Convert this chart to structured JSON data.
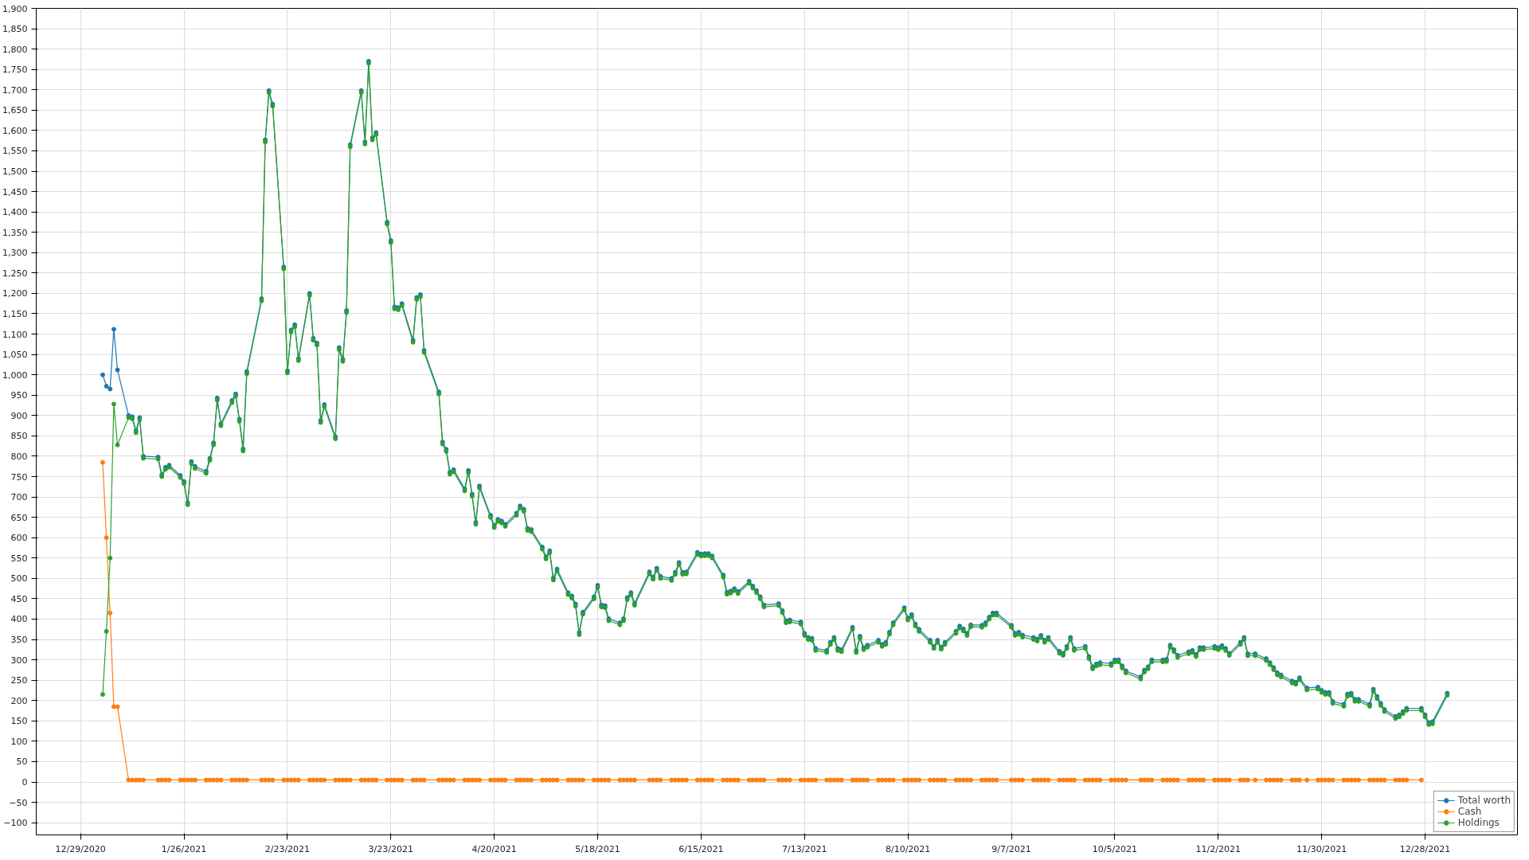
{
  "chart_data": {
    "type": "line",
    "marker": "circle",
    "line_style": "solid",
    "grid": true,
    "legend": "bottom right",
    "xlim": [
      "2020-12-17",
      "2022-01-22"
    ],
    "ylim": [
      -130,
      1900
    ],
    "xticks": [
      {
        "value": "2020-12-29",
        "label": "12/29/2020"
      },
      {
        "value": "2021-01-26",
        "label": "1/26/2021"
      },
      {
        "value": "2021-02-23",
        "label": "2/23/2021"
      },
      {
        "value": "2021-03-23",
        "label": "3/23/2021"
      },
      {
        "value": "2021-04-20",
        "label": "4/20/2021"
      },
      {
        "value": "2021-05-18",
        "label": "5/18/2021"
      },
      {
        "value": "2021-06-15",
        "label": "6/15/2021"
      },
      {
        "value": "2021-07-13",
        "label": "7/13/2021"
      },
      {
        "value": "2021-08-10",
        "label": "8/10/2021"
      },
      {
        "value": "2021-09-07",
        "label": "9/7/2021"
      },
      {
        "value": "2021-10-05",
        "label": "10/5/2021"
      },
      {
        "value": "2021-11-02",
        "label": "11/2/2021"
      },
      {
        "value": "2021-11-30",
        "label": "11/30/2021"
      },
      {
        "value": "2021-12-28",
        "label": "12/28/2021"
      }
    ],
    "yticks": [
      -100,
      -50,
      0,
      50,
      100,
      150,
      200,
      250,
      300,
      350,
      400,
      450,
      500,
      550,
      600,
      650,
      700,
      750,
      800,
      850,
      900,
      950,
      {
        "value": 1000,
        "label": "1,000"
      },
      {
        "value": 1050,
        "label": "1,050"
      },
      {
        "value": 1100,
        "label": "1,100"
      },
      {
        "value": 1150,
        "label": "1,150"
      },
      {
        "value": 1200,
        "label": "1,200"
      },
      {
        "value": 1250,
        "label": "1,250"
      },
      {
        "value": 1300,
        "label": "1,300"
      },
      {
        "value": 1350,
        "label": "1,350"
      },
      {
        "value": 1400,
        "label": "1,400"
      },
      {
        "value": 1450,
        "label": "1,450"
      },
      {
        "value": 1500,
        "label": "1,500"
      },
      {
        "value": 1550,
        "label": "1,550"
      },
      {
        "value": 1600,
        "label": "1,600"
      },
      {
        "value": 1650,
        "label": "1,650"
      },
      {
        "value": 1700,
        "label": "1,700"
      },
      {
        "value": 1750,
        "label": "1,750"
      },
      {
        "value": 1800,
        "label": "1,800"
      },
      {
        "value": 1850,
        "label": "1,850"
      },
      {
        "value": 1900,
        "label": "1,900"
      }
    ],
    "x": [
      "2021-01-04",
      "2021-01-05",
      "2021-01-06",
      "2021-01-07",
      "2021-01-08",
      "2021-01-11",
      "2021-01-12",
      "2021-01-13",
      "2021-01-14",
      "2021-01-15",
      "2021-01-19",
      "2021-01-20",
      "2021-01-21",
      "2021-01-22",
      "2021-01-25",
      "2021-01-26",
      "2021-01-27",
      "2021-01-28",
      "2021-01-29",
      "2021-02-01",
      "2021-02-02",
      "2021-02-03",
      "2021-02-04",
      "2021-02-05",
      "2021-02-08",
      "2021-02-09",
      "2021-02-10",
      "2021-02-11",
      "2021-02-12",
      "2021-02-16",
      "2021-02-17",
      "2021-02-18",
      "2021-02-19",
      "2021-02-22",
      "2021-02-23",
      "2021-02-24",
      "2021-02-25",
      "2021-02-26",
      "2021-03-01",
      "2021-03-02",
      "2021-03-03",
      "2021-03-04",
      "2021-03-05",
      "2021-03-08",
      "2021-03-09",
      "2021-03-10",
      "2021-03-11",
      "2021-03-12",
      "2021-03-15",
      "2021-03-16",
      "2021-03-17",
      "2021-03-18",
      "2021-03-19",
      "2021-03-22",
      "2021-03-23",
      "2021-03-24",
      "2021-03-25",
      "2021-03-26",
      "2021-03-29",
      "2021-03-30",
      "2021-03-31",
      "2021-04-01",
      "2021-04-05",
      "2021-04-06",
      "2021-04-07",
      "2021-04-08",
      "2021-04-09",
      "2021-04-12",
      "2021-04-13",
      "2021-04-14",
      "2021-04-15",
      "2021-04-16",
      "2021-04-19",
      "2021-04-20",
      "2021-04-21",
      "2021-04-22",
      "2021-04-23",
      "2021-04-26",
      "2021-04-27",
      "2021-04-28",
      "2021-04-29",
      "2021-04-30",
      "2021-05-03",
      "2021-05-04",
      "2021-05-05",
      "2021-05-06",
      "2021-05-07",
      "2021-05-10",
      "2021-05-11",
      "2021-05-12",
      "2021-05-13",
      "2021-05-14",
      "2021-05-17",
      "2021-05-18",
      "2021-05-19",
      "2021-05-20",
      "2021-05-21",
      "2021-05-24",
      "2021-05-25",
      "2021-05-26",
      "2021-05-27",
      "2021-05-28",
      "2021-06-01",
      "2021-06-02",
      "2021-06-03",
      "2021-06-04",
      "2021-06-07",
      "2021-06-08",
      "2021-06-09",
      "2021-06-10",
      "2021-06-11",
      "2021-06-14",
      "2021-06-15",
      "2021-06-16",
      "2021-06-17",
      "2021-06-18",
      "2021-06-21",
      "2021-06-22",
      "2021-06-23",
      "2021-06-24",
      "2021-06-25",
      "2021-06-28",
      "2021-06-29",
      "2021-06-30",
      "2021-07-01",
      "2021-07-02",
      "2021-07-06",
      "2021-07-07",
      "2021-07-08",
      "2021-07-09",
      "2021-07-12",
      "2021-07-13",
      "2021-07-14",
      "2021-07-15",
      "2021-07-16",
      "2021-07-19",
      "2021-07-20",
      "2021-07-21",
      "2021-07-22",
      "2021-07-23",
      "2021-07-26",
      "2021-07-27",
      "2021-07-28",
      "2021-07-29",
      "2021-07-30",
      "2021-08-02",
      "2021-08-03",
      "2021-08-04",
      "2021-08-05",
      "2021-08-06",
      "2021-08-09",
      "2021-08-10",
      "2021-08-11",
      "2021-08-12",
      "2021-08-13",
      "2021-08-16",
      "2021-08-17",
      "2021-08-18",
      "2021-08-19",
      "2021-08-20",
      "2021-08-23",
      "2021-08-24",
      "2021-08-25",
      "2021-08-26",
      "2021-08-27",
      "2021-08-30",
      "2021-08-31",
      "2021-09-01",
      "2021-09-02",
      "2021-09-03",
      "2021-09-07",
      "2021-09-08",
      "2021-09-09",
      "2021-09-10",
      "2021-09-13",
      "2021-09-14",
      "2021-09-15",
      "2021-09-16",
      "2021-09-17",
      "2021-09-20",
      "2021-09-21",
      "2021-09-22",
      "2021-09-23",
      "2021-09-24",
      "2021-09-27",
      "2021-09-28",
      "2021-09-29",
      "2021-09-30",
      "2021-10-01",
      "2021-10-04",
      "2021-10-05",
      "2021-10-06",
      "2021-10-07",
      "2021-10-08",
      "2021-10-12",
      "2021-10-13",
      "2021-10-14",
      "2021-10-15",
      "2021-10-18",
      "2021-10-19",
      "2021-10-20",
      "2021-10-21",
      "2021-10-22",
      "2021-10-25",
      "2021-10-26",
      "2021-10-27",
      "2021-10-28",
      "2021-10-29",
      "2021-11-01",
      "2021-11-02",
      "2021-11-03",
      "2021-11-04",
      "2021-11-05",
      "2021-11-08",
      "2021-11-09",
      "2021-11-10",
      "2021-11-12",
      "2021-11-15",
      "2021-11-16",
      "2021-11-17",
      "2021-11-18",
      "2021-11-19",
      "2021-11-22",
      "2021-11-23",
      "2021-11-24",
      "2021-11-26",
      "2021-11-29",
      "2021-11-30",
      "2021-12-01",
      "2021-12-02",
      "2021-12-03",
      "2021-12-06",
      "2021-12-07",
      "2021-12-08",
      "2021-12-09",
      "2021-12-10",
      "2021-12-13",
      "2021-12-14",
      "2021-12-15",
      "2021-12-16",
      "2021-12-17",
      "2021-12-20",
      "2021-12-21",
      "2021-12-22",
      "2021-12-23",
      "2021-12-27",
      "2021-12-28",
      "2021-12-29",
      "2021-12-30",
      "2022-01-03"
    ],
    "series": [
      {
        "name": "Total worth",
        "color": "#1f77b4",
        "values": [
          1000,
          972,
          965,
          1112,
          1012,
          900,
          897,
          863,
          895,
          800,
          798,
          755,
          773,
          778,
          753,
          738,
          686,
          787,
          775,
          763,
          795,
          833,
          943,
          880,
          937,
          953,
          891,
          818,
          1008,
          1187,
          1577,
          1698,
          1665,
          1265,
          1010,
          1110,
          1123,
          1040,
          1200,
          1090,
          1078,
          888,
          927,
          848,
          1067,
          1038,
          1158,
          1565,
          1698,
          1572,
          1770,
          1582,
          1595,
          1375,
          1330,
          1167,
          1165,
          1175,
          1085,
          1190,
          1197,
          1060,
          958,
          835,
          817,
          761,
          767,
          720,
          765,
          707,
          638,
          727,
          655,
          630,
          645,
          641,
          633,
          660,
          678,
          670,
          623,
          620,
          577,
          553,
          568,
          501,
          523,
          465,
          457,
          437,
          367,
          417,
          455,
          483,
          435,
          433,
          401,
          391,
          401,
          453,
          465,
          439,
          516,
          503,
          525,
          505,
          500,
          515,
          539,
          515,
          516,
          564,
          560,
          561,
          561,
          555,
          508,
          466,
          469,
          475,
          468,
          493,
          481,
          470,
          455,
          435,
          438,
          421,
          396,
          398,
          393,
          365,
          355,
          353,
          328,
          323,
          343,
          355,
          328,
          325,
          380,
          323,
          358,
          330,
          336,
          348,
          338,
          343,
          368,
          391,
          428,
          403,
          411,
          388,
          375,
          348,
          333,
          348,
          331,
          343,
          370,
          383,
          376,
          365,
          386,
          385,
          391,
          405,
          415,
          415,
          385,
          365,
          368,
          361,
          355,
          351,
          360,
          348,
          355,
          321,
          316,
          333,
          355,
          328,
          333,
          308,
          283,
          290,
          293,
          291,
          300,
          300,
          285,
          273,
          258,
          275,
          283,
          300,
          300,
          301,
          336,
          325,
          311,
          320,
          323,
          313,
          330,
          330,
          333,
          330,
          335,
          328,
          316,
          343,
          355,
          315,
          315,
          303,
          293,
          281,
          268,
          263,
          248,
          245,
          256,
          231,
          233,
          225,
          220,
          220,
          198,
          191,
          216,
          218,
          203,
          203,
          191,
          228,
          210,
          193,
          178,
          161,
          165,
          173,
          181,
          181,
          165,
          146,
          148,
          218
        ]
      },
      {
        "name": "Cash",
        "color": "#ff7f0e",
        "values": [
          785,
          600,
          415,
          185,
          185,
          5,
          5,
          5,
          5,
          5,
          5,
          5,
          5,
          5,
          5,
          5,
          5,
          5,
          5,
          5,
          5,
          5,
          5,
          5,
          5,
          5,
          5,
          5,
          5,
          5,
          5,
          5,
          5,
          5,
          5,
          5,
          5,
          5,
          5,
          5,
          5,
          5,
          5,
          5,
          5,
          5,
          5,
          5,
          5,
          5,
          5,
          5,
          5,
          5,
          5,
          5,
          5,
          5,
          5,
          5,
          5,
          5,
          5,
          5,
          5,
          5,
          5,
          5,
          5,
          5,
          5,
          5,
          5,
          5,
          5,
          5,
          5,
          5,
          5,
          5,
          5,
          5,
          5,
          5,
          5,
          5,
          5,
          5,
          5,
          5,
          5,
          5,
          5,
          5,
          5,
          5,
          5,
          5,
          5,
          5,
          5,
          5,
          5,
          5,
          5,
          5,
          5,
          5,
          5,
          5,
          5,
          5,
          5,
          5,
          5,
          5,
          5,
          5,
          5,
          5,
          5,
          5,
          5,
          5,
          5,
          5,
          5,
          5,
          5,
          5,
          5,
          5,
          5,
          5,
          5,
          5,
          5,
          5,
          5,
          5,
          5,
          5,
          5,
          5,
          5,
          5,
          5,
          5,
          5,
          5,
          5,
          5,
          5,
          5,
          5,
          5,
          5,
          5,
          5,
          5,
          5,
          5,
          5,
          5,
          5,
          5,
          5,
          5,
          5,
          5,
          5,
          5,
          5,
          5,
          5,
          5,
          5,
          5,
          5,
          5,
          5,
          5,
          5,
          5,
          5,
          5,
          5,
          5,
          5,
          5,
          5,
          5,
          5,
          5,
          5,
          5,
          5,
          5,
          5,
          5,
          5,
          5,
          5,
          5,
          5,
          5,
          5,
          5,
          5,
          5,
          5,
          5,
          5,
          5,
          5,
          5,
          5,
          5,
          5,
          5,
          5,
          5,
          5,
          5,
          5,
          5,
          5,
          5,
          5,
          5,
          5,
          5,
          5,
          5,
          5,
          5,
          5,
          5,
          5,
          5,
          5,
          5,
          5,
          5,
          5,
          5,
          null,
          null,
          null,
          null
        ]
      },
      {
        "name": "Holdings",
        "color": "#2ca02c",
        "values": [
          215,
          370,
          550,
          928,
          828,
          895,
          892,
          858,
          890,
          795,
          793,
          750,
          768,
          773,
          748,
          733,
          681,
          782,
          770,
          758,
          790,
          828,
          938,
          875,
          932,
          948,
          886,
          813,
          1003,
          1182,
          1572,
          1693,
          1660,
          1260,
          1005,
          1105,
          1118,
          1035,
          1195,
          1085,
          1073,
          883,
          922,
          843,
          1062,
          1033,
          1153,
          1560,
          1693,
          1567,
          1765,
          1577,
          1590,
          1370,
          1325,
          1162,
          1160,
          1170,
          1080,
          1185,
          1192,
          1055,
          953,
          830,
          812,
          756,
          762,
          715,
          760,
          702,
          633,
          722,
          650,
          625,
          640,
          636,
          628,
          655,
          673,
          665,
          618,
          615,
          572,
          548,
          563,
          496,
          518,
          460,
          452,
          432,
          362,
          412,
          450,
          478,
          430,
          428,
          396,
          386,
          396,
          448,
          460,
          434,
          511,
          498,
          520,
          500,
          495,
          510,
          534,
          510,
          511,
          559,
          555,
          556,
          556,
          550,
          503,
          461,
          464,
          470,
          463,
          488,
          476,
          465,
          450,
          430,
          433,
          416,
          391,
          393,
          388,
          360,
          350,
          348,
          323,
          318,
          338,
          350,
          323,
          320,
          375,
          318,
          353,
          325,
          331,
          343,
          333,
          338,
          363,
          386,
          423,
          398,
          406,
          383,
          370,
          343,
          328,
          343,
          326,
          338,
          365,
          378,
          371,
          360,
          381,
          380,
          386,
          400,
          410,
          410,
          380,
          360,
          363,
          356,
          350,
          346,
          355,
          343,
          350,
          316,
          311,
          328,
          350,
          323,
          328,
          303,
          278,
          285,
          288,
          286,
          295,
          295,
          280,
          268,
          253,
          270,
          278,
          295,
          295,
          296,
          331,
          320,
          306,
          315,
          318,
          308,
          325,
          325,
          328,
          325,
          330,
          323,
          311,
          338,
          350,
          310,
          310,
          298,
          288,
          276,
          263,
          258,
          243,
          240,
          251,
          226,
          228,
          220,
          215,
          215,
          193,
          186,
          211,
          213,
          198,
          198,
          186,
          223,
          205,
          188,
          173,
          156,
          160,
          168,
          176,
          176,
          160,
          141,
          143,
          213
        ]
      }
    ]
  }
}
